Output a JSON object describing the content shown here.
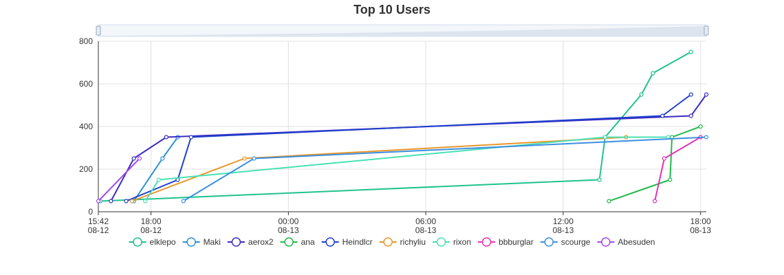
{
  "chart_data": {
    "type": "line",
    "title": "Top 10 Users",
    "ylim": [
      0,
      800
    ],
    "y_ticks": [
      0,
      200,
      400,
      600,
      800
    ],
    "xlim": [
      "08-12 15:42",
      "08-13 18:15"
    ],
    "x_ticks": [
      {
        "time": "08-12 15:42",
        "label": "15:42",
        "sublabel": "08-12"
      },
      {
        "time": "08-12 18:00",
        "label": "18:00",
        "sublabel": "08-12"
      },
      {
        "time": "08-13 00:00",
        "label": "00:00",
        "sublabel": "08-13"
      },
      {
        "time": "08-13 06:00",
        "label": "06:00",
        "sublabel": "08-13"
      },
      {
        "time": "08-13 12:00",
        "label": "12:00",
        "sublabel": "08-13"
      },
      {
        "time": "08-13 18:00",
        "label": "18:00",
        "sublabel": "08-13"
      }
    ],
    "grid": true,
    "legend_position": "bottom",
    "data_zoom_slider": true,
    "series": [
      {
        "name": "elklepo",
        "color": "#1fc28e",
        "points": [
          [
            "08-12 15:47",
            50
          ],
          [
            "08-13 13:35",
            150
          ],
          [
            "08-13 13:50",
            350
          ],
          [
            "08-13 15:25",
            550
          ],
          [
            "08-13 15:55",
            650
          ],
          [
            "08-13 17:35",
            750
          ]
        ]
      },
      {
        "name": "Maki",
        "color": "#2a92d6",
        "points": [
          [
            "08-12 17:15",
            50
          ],
          [
            "08-12 18:30",
            250
          ],
          [
            "08-12 19:10",
            350
          ]
        ]
      },
      {
        "name": "aerox2",
        "color": "#3a2cc2",
        "points": [
          [
            "08-12 16:15",
            50
          ],
          [
            "08-12 17:15",
            250
          ],
          [
            "08-12 18:40",
            350
          ],
          [
            "08-13 17:35",
            450
          ],
          [
            "08-13 18:15",
            550
          ]
        ]
      },
      {
        "name": "ana",
        "color": "#20b84a",
        "points": [
          [
            "08-13 14:00",
            50
          ],
          [
            "08-13 16:40",
            150
          ],
          [
            "08-13 16:45",
            350
          ],
          [
            "08-13 18:00",
            400
          ]
        ]
      },
      {
        "name": "Heindlcr",
        "color": "#1f3fcc",
        "points": [
          [
            "08-12 16:55",
            50
          ],
          [
            "08-12 19:10",
            150
          ],
          [
            "08-12 19:45",
            350
          ],
          [
            "08-13 16:20",
            450
          ],
          [
            "08-13 17:35",
            550
          ]
        ]
      },
      {
        "name": "richyliu",
        "color": "#e8962a",
        "points": [
          [
            "08-12 17:10",
            50
          ],
          [
            "08-12 22:05",
            250
          ],
          [
            "08-13 14:45",
            350
          ]
        ]
      },
      {
        "name": "rixon",
        "color": "#48e0b4",
        "points": [
          [
            "08-12 17:45",
            50
          ],
          [
            "08-12 18:20",
            150
          ],
          [
            "08-13 13:50",
            350
          ],
          [
            "08-13 16:35",
            350
          ]
        ]
      },
      {
        "name": "bbburglar",
        "color": "#e62fb4",
        "points": [
          [
            "08-13 16:00",
            50
          ],
          [
            "08-13 16:25",
            250
          ],
          [
            "08-13 18:00",
            350
          ]
        ]
      },
      {
        "name": "scourge",
        "color": "#3a8fe0",
        "points": [
          [
            "08-12 19:25",
            50
          ],
          [
            "08-12 22:30",
            250
          ],
          [
            "08-13 18:15",
            350
          ]
        ]
      },
      {
        "name": "Abesuden",
        "color": "#a34be6",
        "points": [
          [
            "08-12 15:42",
            50
          ],
          [
            "08-12 17:30",
            250
          ]
        ]
      }
    ]
  }
}
